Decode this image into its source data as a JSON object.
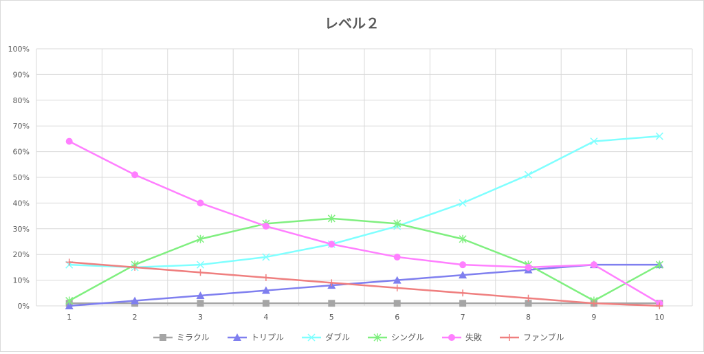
{
  "chart_data": {
    "type": "line",
    "title": "レベル２",
    "xlabel": "",
    "ylabel": "",
    "categories": [
      "1",
      "2",
      "3",
      "4",
      "5",
      "6",
      "7",
      "8",
      "9",
      "10"
    ],
    "ylim": [
      0,
      100
    ],
    "y_ticks": [
      "0%",
      "10%",
      "20%",
      "30%",
      "40%",
      "50%",
      "60%",
      "70%",
      "80%",
      "90%",
      "100%"
    ],
    "grid": true,
    "legend_position": "bottom",
    "series": [
      {
        "name": "ミラクル",
        "color": "#a5a5a5",
        "marker": "square",
        "values": [
          1,
          1,
          1,
          1,
          1,
          1,
          1,
          1,
          1,
          1
        ]
      },
      {
        "name": "トリプル",
        "color": "#7f7fef",
        "marker": "triangle",
        "values": [
          0,
          2,
          4,
          6,
          8,
          10,
          12,
          14,
          16,
          16
        ]
      },
      {
        "name": "ダブル",
        "color": "#7fffff",
        "marker": "x",
        "values": [
          16,
          15,
          16,
          19,
          24,
          31,
          40,
          51,
          64,
          66
        ]
      },
      {
        "name": "シングル",
        "color": "#7fef7f",
        "marker": "star",
        "values": [
          2,
          16,
          26,
          32,
          34,
          32,
          26,
          16,
          2,
          16
        ]
      },
      {
        "name": "失敗",
        "color": "#ff7fff",
        "marker": "circle",
        "values": [
          64,
          51,
          40,
          31,
          24,
          19,
          16,
          15,
          16,
          1
        ]
      },
      {
        "name": "ファンブル",
        "color": "#ef7f7f",
        "marker": "plus",
        "values": [
          17,
          15,
          13,
          11,
          9,
          7,
          5,
          3,
          1,
          0
        ]
      }
    ]
  }
}
